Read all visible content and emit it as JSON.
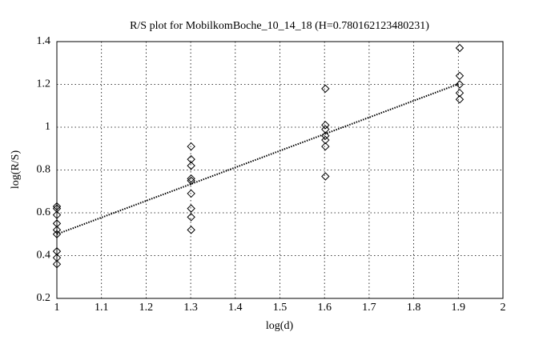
{
  "chart_data": {
    "type": "scatter",
    "title": "R/S plot for MobilkomBoche_10_14_18 (H=0.780162123480231)",
    "x_label": "log(d)",
    "y_label": "log(R/S)",
    "xlim": [
      1,
      2
    ],
    "ylim": [
      0.2,
      1.4
    ],
    "xticks": [
      1,
      1.1,
      1.2,
      1.3,
      1.4,
      1.5,
      1.6,
      1.7,
      1.8,
      1.9,
      2
    ],
    "yticks": [
      0.2,
      0.4,
      0.6,
      0.8,
      1,
      1.2,
      1.4
    ],
    "grid": true,
    "series": [
      {
        "type": "scatter",
        "color": "#000000",
        "x": [
          1,
          1,
          1,
          1,
          1,
          1,
          1,
          1,
          1,
          1.301,
          1.301,
          1.301,
          1.301,
          1.301,
          1.301,
          1.301,
          1.301,
          1.301,
          1.602,
          1.602,
          1.602,
          1.602,
          1.602,
          1.602,
          1.602,
          1.903,
          1.903,
          1.903,
          1.903,
          1.903
        ],
        "values": [
          0.63,
          0.62,
          0.59,
          0.55,
          0.52,
          0.5,
          0.42,
          0.39,
          0.36,
          0.91,
          0.85,
          0.82,
          0.76,
          0.75,
          0.69,
          0.62,
          0.58,
          0.52,
          1.18,
          1.01,
          0.99,
          0.96,
          0.94,
          0.91,
          0.77,
          1.37,
          1.24,
          1.2,
          1.16,
          1.13
        ]
      },
      {
        "type": "line",
        "color": "#000000",
        "x": [
          1,
          1.903
        ],
        "values": [
          0.5,
          1.204
        ]
      }
    ]
  }
}
